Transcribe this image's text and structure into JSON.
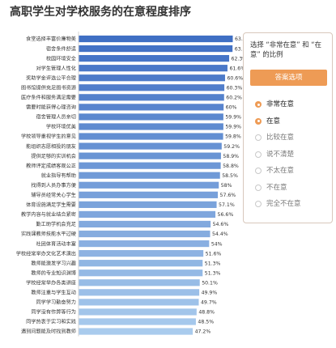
{
  "title": "高职学生对学校服务的在意程度排序",
  "chart_data": {
    "type": "bar",
    "orientation": "horizontal",
    "categories": [
      "食堂选择丰富价廉物美",
      "宿舍条件舒适",
      "校园环境安全",
      "对学生管理人性化",
      "奖助学金评选公平合理",
      "图书馆提供充足图书资源",
      "医疗条件和服务满足需要",
      "需要时能获得心理咨询",
      "宿舍管理人员亲切",
      "学校环境优美",
      "学校领导重视学生的意见",
      "能组织志愿相投的朋友",
      "提供足够的实训机会",
      "教师评定成绩客观公正",
      "就业指导有帮助",
      "找得到人员办事方便",
      "辅导员经常关心学生",
      "体育设施满足学生需要",
      "教学内容与就业结合紧密",
      "勤工助学机会充足",
      "实践课教师技能水平过硬",
      "社团体育活动丰富",
      "学校经常举办文化艺术演出",
      "教师能激发学习兴趣",
      "教师的专业知识渊博",
      "学校经常举办各类讲座",
      "教师注重与学生互动",
      "同学学习勤奋努力",
      "同学没有作弊等行为",
      "同学热衷于实习和实践",
      "遇到问题能及时找到教师"
    ],
    "values": [
      63.8,
      63.7,
      62.3,
      61.6,
      60.6,
      60.3,
      60.2,
      60,
      59.9,
      59.9,
      59.8,
      59.2,
      58.9,
      58.8,
      58.5,
      58,
      57.6,
      57.1,
      56.6,
      54.6,
      54.4,
      54,
      51.6,
      51.3,
      51.3,
      50.1,
      49.9,
      49.7,
      48.8,
      48.5,
      47.2
    ],
    "value_labels": [
      "63.8%",
      "63.7%",
      "62.3%",
      "61.6%",
      "60.6%",
      "60.3%",
      "60.2%",
      "60%",
      "59.9%",
      "59.9%",
      "59.8%",
      "59.2%",
      "58.9%",
      "58.8%",
      "58.5%",
      "58%",
      "57.6%",
      "57.1%",
      "56.6%",
      "54.6%",
      "54.4%",
      "54%",
      "51.6%",
      "51.3%",
      "51.3%",
      "50.1%",
      "49.9%",
      "49.7%",
      "48.8%",
      "48.5%",
      "47.2%"
    ],
    "color_start": "#3f6fc4",
    "color_end": "#a9cbed",
    "grid": false
  },
  "panel": {
    "title": "选择 “非常在意” 和 “在意” 的比例",
    "button_label": "答案选项",
    "accent": "#ee9b55",
    "options": [
      {
        "label": "非常在意",
        "selected": true
      },
      {
        "label": "在意",
        "selected": true
      },
      {
        "label": "比较在意",
        "selected": false
      },
      {
        "label": "说不清楚",
        "selected": false
      },
      {
        "label": "不太在意",
        "selected": false
      },
      {
        "label": "不在意",
        "selected": false
      },
      {
        "label": "完全不在意",
        "selected": false
      }
    ]
  }
}
